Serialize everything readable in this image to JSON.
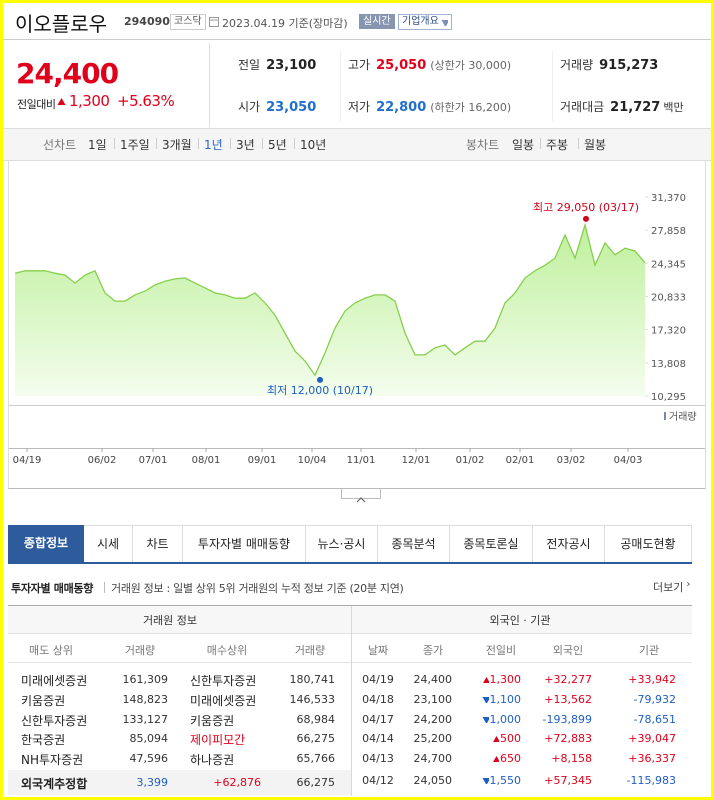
{
  "header": {
    "name": "이오플로우",
    "code": "294090",
    "market": "코스닥",
    "date": "2023.04.19 기준(장마감)",
    "realtime": "실시간",
    "company_info": "기업개요"
  },
  "quote": {
    "price": "24,400",
    "change_label": "전일대비",
    "change": "1,300",
    "change_pct": "+5.63%",
    "stats": [
      {
        "label": "전일",
        "value": "23,100"
      },
      {
        "label": "고가",
        "value": "25,050",
        "note": "(상한가 30,000)",
        "color": "#e0001b"
      },
      {
        "label": "거래량",
        "value": "915,273"
      },
      {
        "label": "시가",
        "value": "23,050",
        "color": "#1f6fcc"
      },
      {
        "label": "저가",
        "value": "22,800",
        "note": "(하한가 16,200)",
        "color": "#1f6fcc"
      },
      {
        "label": "거래대금",
        "value": "21,727",
        "unit": "백만"
      }
    ]
  },
  "period_tabs": {
    "line_label": "선차트",
    "line": [
      "1일",
      "1주일",
      "3개월",
      "1년",
      "3년",
      "5년",
      "10년"
    ],
    "active": 3,
    "candle_label": "봉차트",
    "candle": [
      "일봉",
      "주봉",
      "월봉"
    ]
  },
  "chart_data": {
    "type": "line",
    "color": "#86cf4c",
    "values": [
      23300,
      23550,
      23550,
      23550,
      23300,
      23100,
      22250,
      23100,
      23550,
      21200,
      20350,
      20350,
      21000,
      21400,
      22050,
      22450,
      22700,
      22800,
      22250,
      21750,
      21200,
      21000,
      20650,
      20650,
      21200,
      20150,
      18850,
      16950,
      15050,
      14000,
      12500,
      14850,
      17500,
      19300,
      20150,
      20650,
      21000,
      21000,
      20350,
      16950,
      14650,
      14650,
      15400,
      15700,
      14650,
      15400,
      16100,
      16100,
      17500,
      20150,
      21200,
      22800,
      23550,
      24150,
      24900,
      27350,
      24900,
      28400,
      24150,
      26500,
      25250,
      25950,
      25650,
      24400
    ],
    "xlim": [
      0,
      63
    ],
    "xticks": [
      {
        "value": 1.2,
        "label": "04/19"
      },
      {
        "value": 8.7,
        "label": "06/02"
      },
      {
        "value": 13.8,
        "label": "07/01"
      },
      {
        "value": 19.1,
        "label": "08/01"
      },
      {
        "value": 24.7,
        "label": "09/01"
      },
      {
        "value": 29.7,
        "label": "10/04"
      },
      {
        "value": 34.6,
        "label": "11/01"
      },
      {
        "value": 40.1,
        "label": "12/01"
      },
      {
        "value": 45.5,
        "label": "01/02"
      },
      {
        "value": 50.5,
        "label": "02/01"
      },
      {
        "value": 55.6,
        "label": "03/02"
      },
      {
        "value": 61.3,
        "label": "04/03"
      }
    ],
    "ylim": [
      10295,
      31370
    ],
    "yticks": [
      {
        "value": 31370,
        "label": "31,370"
      },
      {
        "value": 27858,
        "label": "27,858"
      },
      {
        "value": 24345,
        "label": "24,345"
      },
      {
        "value": 20833,
        "label": "20,833"
      },
      {
        "value": 17320,
        "label": "17,320"
      },
      {
        "value": 13808,
        "label": "13,808"
      },
      {
        "value": 10295,
        "label": "10,295"
      }
    ],
    "grid": false,
    "annotations": [
      {
        "label": "최고 29,050 (03/17)",
        "value": 29050,
        "x": 57.1,
        "color": "#d0021b"
      },
      {
        "label": "최저 12,000 (10/17)",
        "value": 12000,
        "x": 30.5,
        "color": "#1f5fc4"
      }
    ],
    "volume_label": "거래량"
  },
  "nav_tabs": {
    "items": [
      "종합정보",
      "시세",
      "차트",
      "투자자별 매매동향",
      "뉴스·공시",
      "종목분석",
      "종목토론실",
      "전자공시",
      "공매도현황"
    ],
    "active": 0
  },
  "investor": {
    "title": "투자자별 매매동향",
    "desc": "거래원 정보 : 일별 상위 5위 거래원의 누적 정보 기준 (20분 지연)",
    "more": "더보기",
    "broker": {
      "title": "거래원 정보",
      "headers": [
        "매도 상위",
        "거래량",
        "매수상위",
        "거래량"
      ],
      "rows": [
        [
          "미래에셋증권",
          "161,309",
          "신한투자증권",
          "180,741"
        ],
        [
          "키움증권",
          "148,823",
          "미래에셋증권",
          "146,533"
        ],
        [
          "신한투자증권",
          "133,127",
          "키움증권",
          "68,984"
        ],
        [
          "한국증권",
          "85,094",
          "제이피모간",
          "66,275"
        ],
        [
          "NH투자증권",
          "47,596",
          "하나증권",
          "65,766"
        ]
      ],
      "highlight": [
        [
          3,
          2
        ]
      ],
      "total": {
        "label": "외국계추정합",
        "sell": "3,399",
        "net": "+62,876",
        "buy": "66,275"
      }
    },
    "foreign": {
      "title": "외국인 · 기관",
      "headers": [
        "날짜",
        "종가",
        "전일비",
        "외국인",
        "기관"
      ],
      "rows": [
        {
          "date": "04/19",
          "close": "24,400",
          "change": "1,300",
          "dir": "up",
          "foreign": "+32,277",
          "inst": "+33,942"
        },
        {
          "date": "04/18",
          "close": "23,100",
          "change": "1,100",
          "dir": "down",
          "foreign": "+13,562",
          "inst": "-79,932"
        },
        {
          "date": "04/17",
          "close": "24,200",
          "change": "1,000",
          "dir": "down",
          "foreign": "-193,899",
          "inst": "-78,651"
        },
        {
          "date": "04/14",
          "close": "25,200",
          "change": "500",
          "dir": "up",
          "foreign": "+72,883",
          "inst": "+39,047"
        },
        {
          "date": "04/13",
          "close": "24,700",
          "change": "650",
          "dir": "up",
          "foreign": "+8,158",
          "inst": "+36,337"
        },
        {
          "date": "04/12",
          "close": "24,050",
          "change": "1,550",
          "dir": "down",
          "foreign": "+57,345",
          "inst": "-115,983"
        }
      ]
    }
  }
}
